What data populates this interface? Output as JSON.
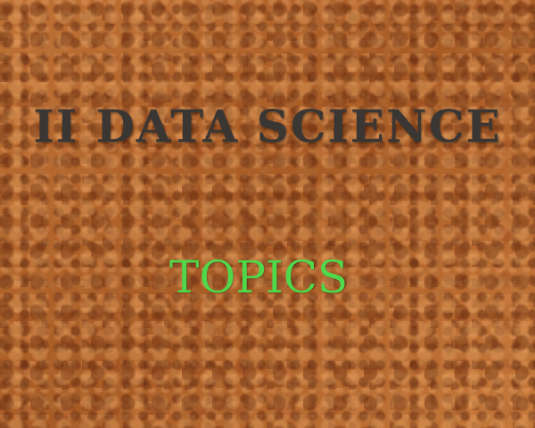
{
  "slide": {
    "title": "II DATA SCIENCE",
    "subtitle": "TOPICS",
    "colors": {
      "title": "#3a3634",
      "subtitle": "#4fd84a",
      "background": "#b8692e"
    }
  }
}
